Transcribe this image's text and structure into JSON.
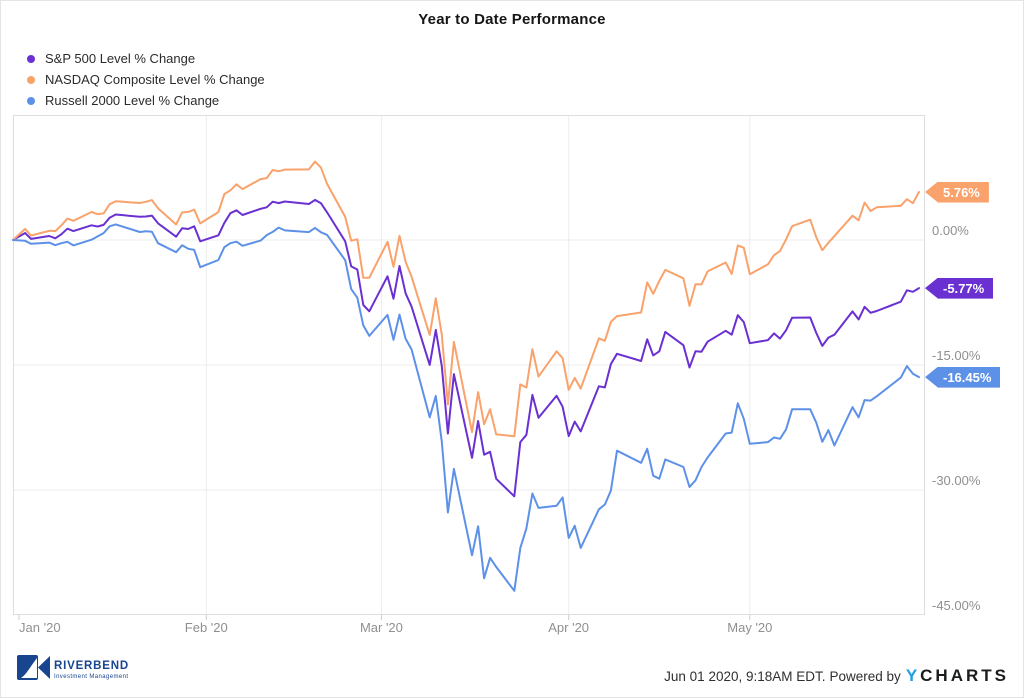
{
  "footer": {
    "timestamp": "Jun 01 2020, 9:18AM EDT.",
    "powered_by": "Powered by",
    "brand_y": "Y",
    "brand_rest": "CHARTS",
    "logo_name": "RIVERBEND",
    "logo_subtitle": "Investment Management",
    "logo_color": "#17458f"
  },
  "chart_data": {
    "type": "line",
    "title": "Year to Date Performance",
    "legend_position": "top-left",
    "grid": true,
    "x_axis": {
      "domain": [
        "2019-12-31",
        "2020-05-30"
      ],
      "month_starts": [
        "2020-01-01",
        "2020-02-01",
        "2020-03-01",
        "2020-04-01",
        "2020-05-01"
      ],
      "labels": [
        "Jan '20",
        "Feb '20",
        "Mar '20",
        "Apr '20",
        "May '20"
      ]
    },
    "y_axis": {
      "range": [
        15,
        -45
      ],
      "tick_values": [
        0,
        -15,
        -30,
        -45
      ],
      "tick_labels": [
        "0.00%",
        "-15.00%",
        "-30.00%",
        "-45.00%"
      ]
    },
    "dates": [
      "2019-12-31",
      "2020-01-02",
      "2020-01-03",
      "2020-01-06",
      "2020-01-07",
      "2020-01-08",
      "2020-01-09",
      "2020-01-10",
      "2020-01-13",
      "2020-01-14",
      "2020-01-15",
      "2020-01-16",
      "2020-01-17",
      "2020-01-21",
      "2020-01-22",
      "2020-01-23",
      "2020-01-24",
      "2020-01-27",
      "2020-01-28",
      "2020-01-29",
      "2020-01-30",
      "2020-01-31",
      "2020-02-03",
      "2020-02-04",
      "2020-02-05",
      "2020-02-06",
      "2020-02-07",
      "2020-02-10",
      "2020-02-11",
      "2020-02-12",
      "2020-02-13",
      "2020-02-14",
      "2020-02-18",
      "2020-02-19",
      "2020-02-20",
      "2020-02-21",
      "2020-02-24",
      "2020-02-25",
      "2020-02-26",
      "2020-02-27",
      "2020-02-28",
      "2020-03-02",
      "2020-03-03",
      "2020-03-04",
      "2020-03-05",
      "2020-03-06",
      "2020-03-09",
      "2020-03-10",
      "2020-03-11",
      "2020-03-12",
      "2020-03-13",
      "2020-03-16",
      "2020-03-17",
      "2020-03-18",
      "2020-03-19",
      "2020-03-20",
      "2020-03-23",
      "2020-03-24",
      "2020-03-25",
      "2020-03-26",
      "2020-03-27",
      "2020-03-30",
      "2020-03-31",
      "2020-04-01",
      "2020-04-02",
      "2020-04-03",
      "2020-04-06",
      "2020-04-07",
      "2020-04-08",
      "2020-04-09",
      "2020-04-13",
      "2020-04-14",
      "2020-04-15",
      "2020-04-16",
      "2020-04-17",
      "2020-04-20",
      "2020-04-21",
      "2020-04-22",
      "2020-04-23",
      "2020-04-24",
      "2020-04-27",
      "2020-04-28",
      "2020-04-29",
      "2020-04-30",
      "2020-05-01",
      "2020-05-04",
      "2020-05-05",
      "2020-05-06",
      "2020-05-07",
      "2020-05-08",
      "2020-05-11",
      "2020-05-12",
      "2020-05-13",
      "2020-05-14",
      "2020-05-15",
      "2020-05-18",
      "2020-05-19",
      "2020-05-20",
      "2020-05-21",
      "2020-05-22",
      "2020-05-26",
      "2020-05-27",
      "2020-05-28",
      "2020-05-29"
    ],
    "series": [
      {
        "name": "S&P 500 Level % Change",
        "color": "#6A30D2",
        "end_label": "-5.77%",
        "values": [
          0.0,
          0.84,
          0.13,
          0.48,
          0.2,
          0.69,
          1.36,
          1.07,
          1.77,
          1.62,
          1.81,
          2.66,
          3.06,
          2.79,
          2.82,
          2.93,
          2.0,
          0.4,
          1.41,
          1.32,
          1.64,
          -0.16,
          0.56,
          2.07,
          3.22,
          3.56,
          3.0,
          3.75,
          3.93,
          4.6,
          4.43,
          4.62,
          4.32,
          4.81,
          4.41,
          3.31,
          -0.15,
          -3.17,
          -3.54,
          -7.8,
          -8.56,
          -4.35,
          -7.04,
          -3.12,
          -6.4,
          -8.0,
          -14.99,
          -10.79,
          -15.15,
          -23.22,
          -16.09,
          -26.14,
          -21.72,
          -25.77,
          -25.42,
          -28.66,
          -30.75,
          -24.25,
          -23.38,
          -18.59,
          -21.34,
          -18.7,
          -20.0,
          -23.53,
          -21.79,
          -22.97,
          -17.55,
          -17.69,
          -14.88,
          -13.65,
          -14.52,
          -11.91,
          -13.85,
          -13.35,
          -11.03,
          -12.62,
          -15.3,
          -13.35,
          -13.4,
          -12.2,
          -10.9,
          -11.37,
          -9.02,
          -9.85,
          -12.38,
          -12.01,
          -11.21,
          -11.83,
          -10.82,
          -9.32,
          -9.3,
          -11.16,
          -12.71,
          -11.71,
          -11.36,
          -8.57,
          -9.53,
          -8.02,
          -8.74,
          -8.52,
          -7.4,
          -6.03,
          -6.22,
          -5.77
        ]
      },
      {
        "name": "NASDAQ Composite Level % Change",
        "color": "#F9A26B",
        "end_label": "5.76%",
        "values": [
          0.0,
          1.33,
          0.54,
          1.1,
          1.07,
          1.75,
          2.57,
          2.3,
          3.36,
          3.11,
          3.19,
          4.29,
          4.64,
          4.44,
          4.58,
          4.79,
          3.82,
          1.86,
          3.31,
          3.37,
          3.64,
          1.99,
          3.35,
          5.52,
          5.97,
          6.68,
          6.11,
          7.31,
          7.43,
          8.4,
          8.24,
          8.45,
          8.47,
          9.41,
          8.68,
          6.73,
          2.77,
          -0.08,
          0.09,
          -4.53,
          -4.52,
          -0.23,
          -3.22,
          0.51,
          -2.61,
          -4.42,
          -11.39,
          -7.0,
          -11.37,
          -19.74,
          -12.23,
          -23.05,
          -18.25,
          -22.1,
          -20.31,
          -23.33,
          -23.54,
          -17.33,
          -17.7,
          -13.1,
          -16.39,
          -13.36,
          -14.18,
          -17.97,
          -16.55,
          -17.83,
          -11.81,
          -12.1,
          -9.83,
          -9.13,
          -8.7,
          -5.09,
          -6.46,
          -4.91,
          -3.59,
          -4.59,
          -7.91,
          -5.32,
          -5.33,
          -3.77,
          -2.7,
          -4.07,
          -0.65,
          -0.93,
          -4.1,
          -2.92,
          -1.82,
          -1.32,
          0.08,
          1.66,
          2.45,
          0.33,
          -1.22,
          -0.32,
          0.47,
          2.92,
          2.37,
          4.49,
          3.48,
          3.92,
          4.1,
          4.9,
          4.42,
          5.76
        ]
      },
      {
        "name": "Russell 2000 Level % Change",
        "color": "#5D91E8",
        "end_label": "-16.45%",
        "values": [
          0.0,
          -0.1,
          -0.46,
          -0.31,
          -0.62,
          -0.38,
          -0.21,
          -0.65,
          0.04,
          0.43,
          0.83,
          1.65,
          1.87,
          0.96,
          1.05,
          0.99,
          -0.38,
          -1.46,
          -0.63,
          -1.05,
          -1.19,
          -3.26,
          -2.4,
          -0.85,
          -0.38,
          -0.2,
          -0.7,
          -0.07,
          0.59,
          0.97,
          1.49,
          1.15,
          0.95,
          1.45,
          0.93,
          0.61,
          -2.42,
          -5.89,
          -6.92,
          -10.25,
          -11.51,
          -8.99,
          -11.98,
          -8.95,
          -11.86,
          -13.14,
          -21.28,
          -18.71,
          -24.22,
          -32.7,
          -27.47,
          -37.82,
          -34.35,
          -40.6,
          -38.14,
          -39.23,
          -42.09,
          -36.97,
          -34.59,
          -30.42,
          -32.15,
          -31.9,
          -30.89,
          -35.75,
          -34.29,
          -36.95,
          -32.31,
          -31.74,
          -30.06,
          -25.28,
          -26.74,
          -25.06,
          -28.28,
          -28.65,
          -26.33,
          -27.24,
          -29.64,
          -28.84,
          -27.24,
          -26.1,
          -23.22,
          -23.11,
          -19.59,
          -21.45,
          -24.46,
          -24.25,
          -23.7,
          -23.85,
          -22.71,
          -20.31,
          -20.31,
          -21.92,
          -24.21,
          -22.81,
          -24.66,
          -20.06,
          -21.29,
          -19.21,
          -19.27,
          -18.76,
          -16.51,
          -15.13,
          -16.06,
          -16.45
        ]
      }
    ]
  }
}
